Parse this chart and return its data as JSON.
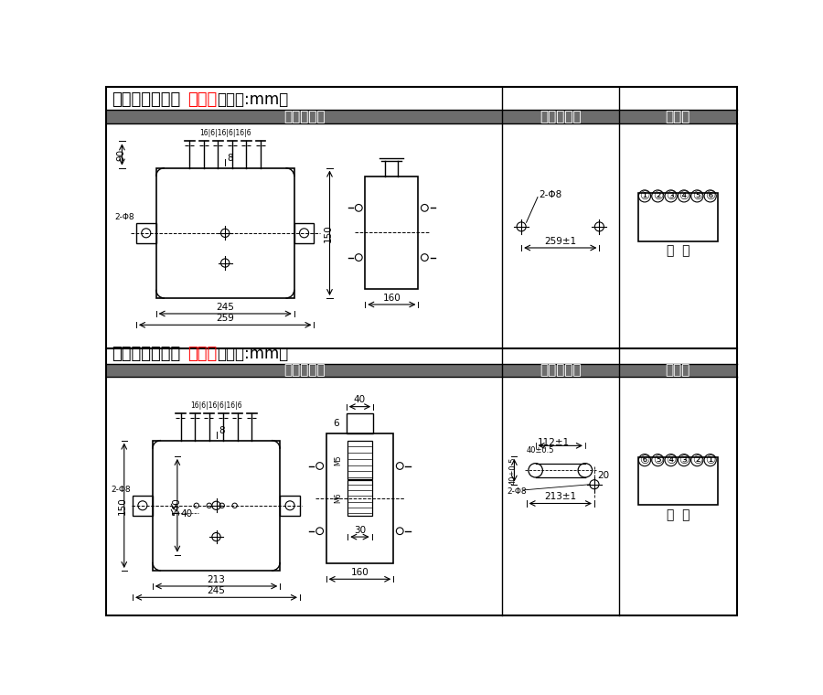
{
  "title1_black": "单相过流凸出式",
  "title1_red": "前接线",
  "title1_rest": "（单位:mm）",
  "title2_black": "单相过流凸出式",
  "title2_red": "后接线",
  "title2_rest": "（单位:mm）",
  "header_bg": "#6d6d6d",
  "header_text_color": "#ffffff",
  "header1": "外形尺寸图",
  "header2": "安装开孔图",
  "header3": "端子图",
  "bg_color": "#ffffff",
  "title_fontsize": 13,
  "header_fontsize": 11
}
